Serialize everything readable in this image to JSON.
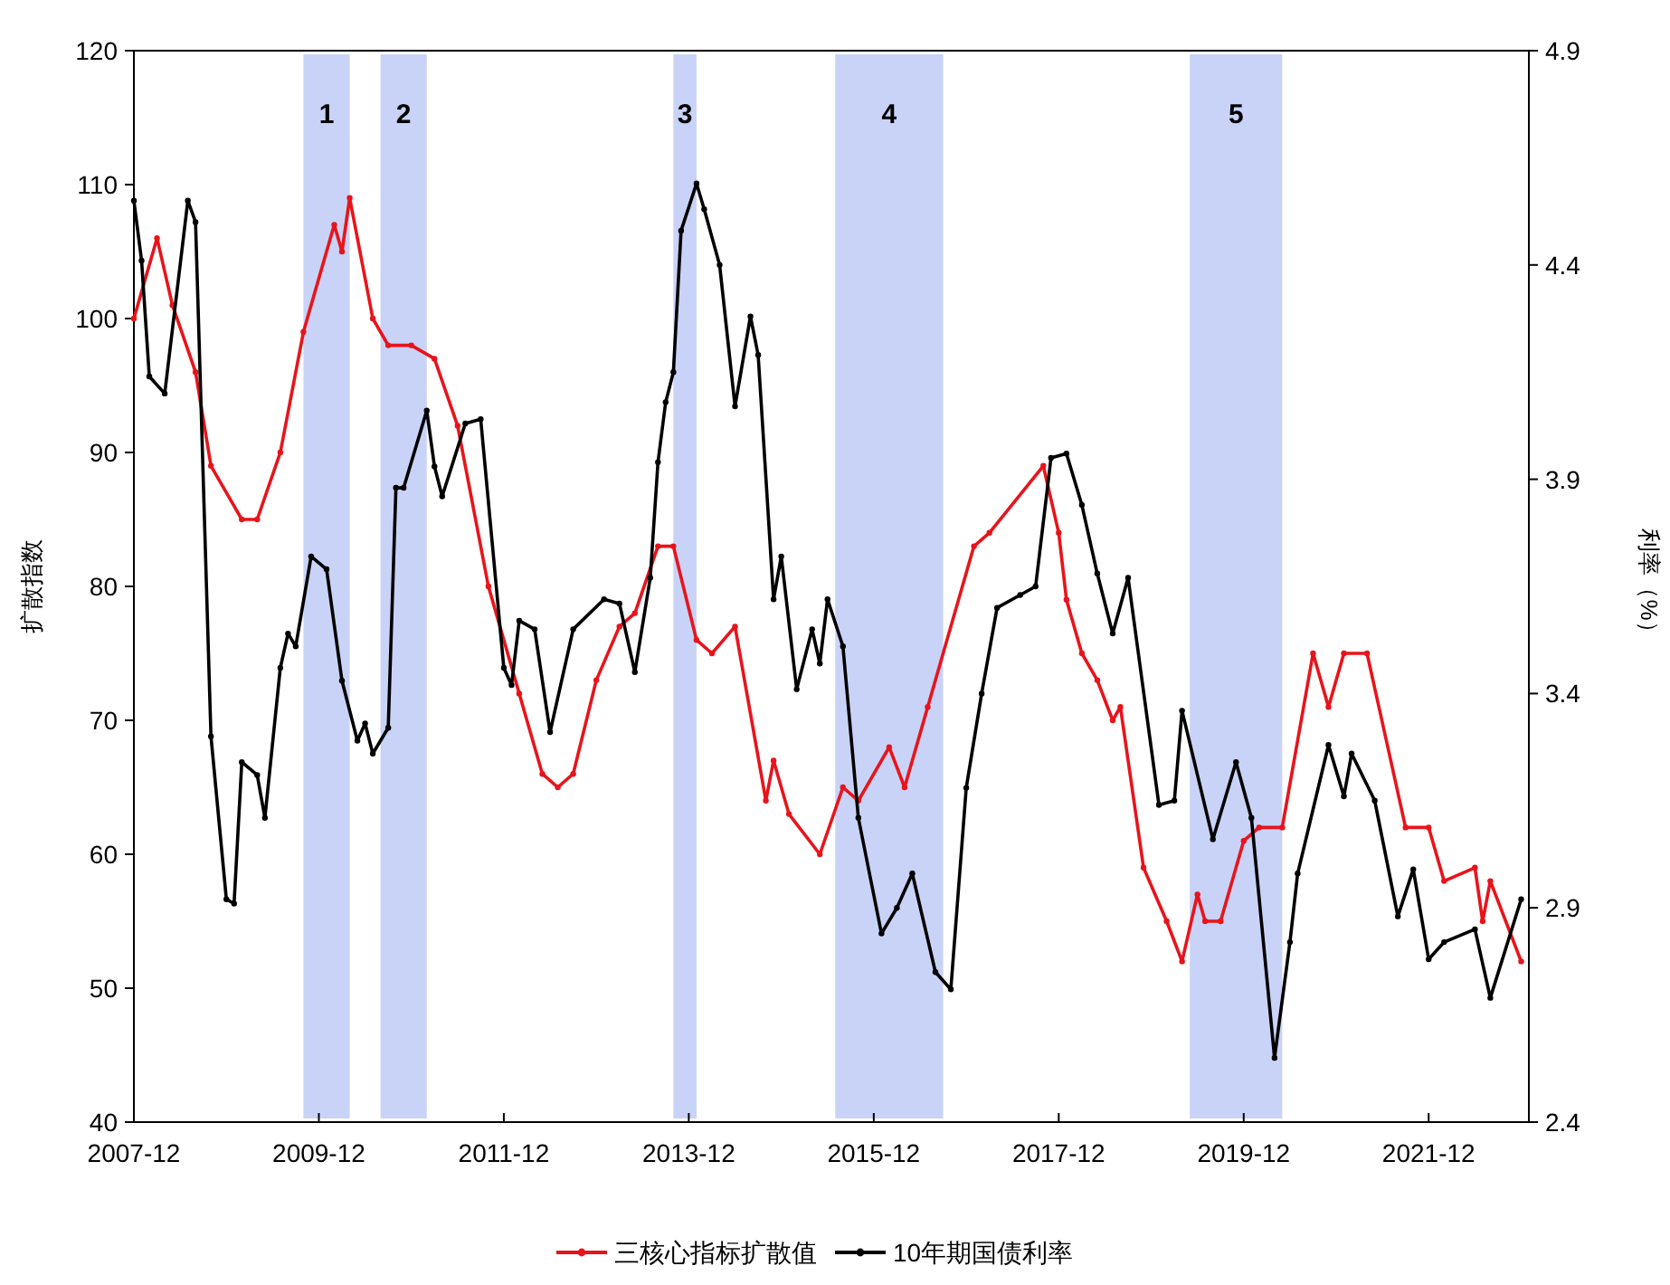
{
  "chart_data": {
    "type": "line",
    "ylabel": "扩散指数",
    "y2label": "利率（%）",
    "xlim": [
      "2007-12",
      "2023-01"
    ],
    "xticks": [
      "2007-12",
      "2009-12",
      "2011-12",
      "2013-12",
      "2015-12",
      "2017-12",
      "2019-12",
      "2021-12"
    ],
    "ylim": [
      40,
      120
    ],
    "yticks": [
      40,
      50,
      60,
      70,
      80,
      90,
      100,
      110,
      120
    ],
    "y2lim": [
      2.4,
      4.9
    ],
    "y2ticks": [
      2.4,
      2.9,
      3.4,
      3.9,
      4.4,
      4.9
    ],
    "marker": "circle",
    "line_style": "solid",
    "legend": "bottom",
    "grid": false,
    "bands": [
      {
        "axis": "x",
        "from": "2009-10",
        "to": "2010-04",
        "label": "1",
        "color": "#c9d3f7"
      },
      {
        "axis": "x",
        "from": "2010-08",
        "to": "2011-02",
        "label": "2",
        "color": "#c9d3f7"
      },
      {
        "axis": "x",
        "from": "2013-10",
        "to": "2014-01",
        "label": "3",
        "color": "#c9d3f7"
      },
      {
        "axis": "x",
        "from": "2015-07",
        "to": "2016-09",
        "label": "4",
        "color": "#c9d3f7"
      },
      {
        "axis": "x",
        "from": "2019-05",
        "to": "2020-05",
        "label": "5",
        "color": "#c9d3f7"
      }
    ],
    "series": [
      {
        "name": "三核心指标扩散值",
        "color": "#e8141b",
        "x": [
          "2007-12",
          "2008-03",
          "2008-05",
          "2008-08",
          "2008-10",
          "2009-02",
          "2009-04",
          "2009-07",
          "2009-10",
          "2010-02",
          "2010-03",
          "2010-04",
          "2010-07",
          "2010-09",
          "2010-12",
          "2011-03",
          "2011-06",
          "2011-10",
          "2012-02",
          "2012-05",
          "2012-07",
          "2012-09",
          "2012-12",
          "2013-03",
          "2013-05",
          "2013-08",
          "2013-10",
          "2014-01",
          "2014-03",
          "2014-06",
          "2014-10",
          "2014-11",
          "2015-01",
          "2015-05",
          "2015-08",
          "2015-10",
          "2016-02",
          "2016-04",
          "2016-07",
          "2017-01",
          "2017-03",
          "2017-10",
          "2017-12",
          "2018-01",
          "2018-03",
          "2018-05",
          "2018-07",
          "2018-08",
          "2018-11",
          "2019-02",
          "2019-04",
          "2019-06",
          "2019-07",
          "2019-09",
          "2019-12",
          "2020-02",
          "2020-05",
          "2020-09",
          "2020-11",
          "2021-01",
          "2021-04",
          "2021-09",
          "2021-12",
          "2022-02",
          "2022-06",
          "2022-07",
          "2022-08",
          "2022-12"
        ],
        "values": [
          100,
          106,
          101,
          96,
          89,
          85,
          85,
          90,
          99,
          107,
          105,
          109,
          100,
          98,
          98,
          97,
          92,
          80,
          72,
          66,
          65,
          66,
          73,
          77,
          78,
          83,
          83,
          76,
          75,
          77,
          64,
          67,
          63,
          60,
          65,
          64,
          68,
          65,
          71,
          83,
          84,
          89,
          84,
          79,
          75,
          73,
          70,
          71,
          59,
          55,
          52,
          57,
          55,
          55,
          61,
          62,
          62,
          75,
          71,
          75,
          75,
          62,
          62,
          58,
          59,
          55,
          58,
          52
        ]
      },
      {
        "name": "10年期国债利率",
        "color": "#000000",
        "axis": "y2",
        "x": [
          "2007-12",
          "2008-01",
          "2008-02",
          "2008-04",
          "2008-07",
          "2008-08",
          "2008-10",
          "2008-12",
          "2009-01",
          "2009-02",
          "2009-04",
          "2009-05",
          "2009-07",
          "2009-08",
          "2009-09",
          "2009-11",
          "2010-01",
          "2010-03",
          "2010-05",
          "2010-06",
          "2010-07",
          "2010-09",
          "2010-10",
          "2010-11",
          "2011-02",
          "2011-03",
          "2011-04",
          "2011-07",
          "2011-09",
          "2011-12",
          "2012-01",
          "2012-02",
          "2012-04",
          "2012-06",
          "2012-09",
          "2013-01",
          "2013-03",
          "2013-05",
          "2013-07",
          "2013-08",
          "2013-09",
          "2013-10",
          "2013-11",
          "2014-01",
          "2014-02",
          "2014-04",
          "2014-06",
          "2014-08",
          "2014-09",
          "2014-11",
          "2014-12",
          "2015-02",
          "2015-04",
          "2015-05",
          "2015-06",
          "2015-08",
          "2015-10",
          "2016-01",
          "2016-03",
          "2016-05",
          "2016-08",
          "2016-10",
          "2016-12",
          "2017-02",
          "2017-04",
          "2017-07",
          "2017-09",
          "2017-11",
          "2018-01",
          "2018-03",
          "2018-05",
          "2018-07",
          "2018-09",
          "2019-01",
          "2019-03",
          "2019-04",
          "2019-08",
          "2019-11",
          "2020-01",
          "2020-04",
          "2020-06",
          "2020-07",
          "2020-11",
          "2021-01",
          "2021-02",
          "2021-05",
          "2021-08",
          "2021-10",
          "2021-12",
          "2022-02",
          "2022-06",
          "2022-08",
          "2022-12"
        ],
        "values": [
          4.55,
          4.41,
          4.14,
          4.1,
          4.55,
          4.5,
          3.3,
          2.92,
          2.91,
          3.24,
          3.21,
          3.11,
          3.46,
          3.54,
          3.51,
          3.72,
          3.69,
          3.43,
          3.29,
          3.33,
          3.26,
          3.32,
          3.88,
          3.88,
          4.06,
          3.93,
          3.86,
          4.03,
          4.04,
          3.46,
          3.42,
          3.57,
          3.55,
          3.31,
          3.55,
          3.62,
          3.61,
          3.45,
          3.67,
          3.94,
          4.08,
          4.15,
          4.48,
          4.59,
          4.53,
          4.4,
          4.07,
          4.28,
          4.19,
          3.62,
          3.72,
          3.41,
          3.55,
          3.47,
          3.62,
          3.51,
          3.11,
          2.84,
          2.9,
          2.98,
          2.75,
          2.71,
          3.18,
          3.4,
          3.6,
          3.63,
          3.65,
          3.95,
          3.96,
          3.84,
          3.68,
          3.54,
          3.67,
          3.14,
          3.15,
          3.36,
          3.06,
          3.24,
          3.11,
          2.55,
          2.82,
          2.98,
          3.28,
          3.16,
          3.26,
          3.15,
          2.88,
          2.99,
          2.78,
          2.82,
          2.85,
          2.69,
          2.92
        ]
      }
    ]
  }
}
